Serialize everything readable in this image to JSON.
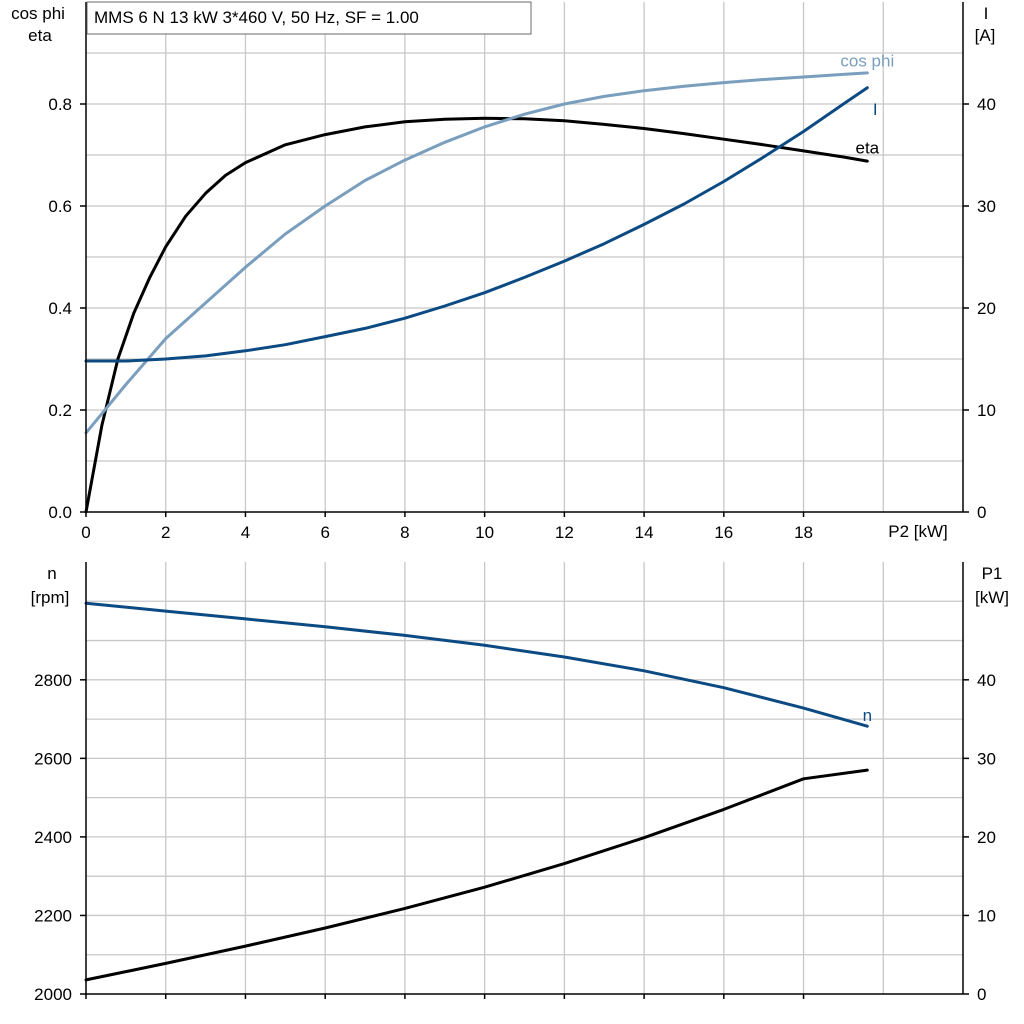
{
  "title": "MMS 6 N   13 kW   3*460 V, 50 Hz, SF = 1.00",
  "colors": {
    "eta": "#000000",
    "cosphi": "#7a9ebd",
    "I": "#0b4a82",
    "n": "#0b4a82",
    "P1": "#000000"
  },
  "chart_data": [
    {
      "type": "line",
      "title": "MMS 6 N   13 kW   3*460 V, 50 Hz, SF = 1.00",
      "x_tick_labels": [
        "0",
        "2",
        "4",
        "6",
        "8",
        "10",
        "12",
        "14",
        "16",
        "18"
      ],
      "x_ticks": [
        0,
        2,
        4,
        6,
        8,
        10,
        12,
        14,
        16,
        18
      ],
      "xlim": [
        0,
        22
      ],
      "xlabel": "P2 [kW]",
      "ylabel_left_line1": "cos phi",
      "ylabel_left_line2": "eta",
      "ylim_left": [
        0,
        1.0
      ],
      "y_left_ticks": [
        0.0,
        0.2,
        0.4,
        0.6,
        0.8
      ],
      "y_left_tick_labels": [
        "0.0",
        "0.2",
        "0.4",
        "0.6",
        "0.8"
      ],
      "ylabel_right_line1": "I",
      "ylabel_right_line2": "[A]",
      "ylim_right": [
        0,
        50
      ],
      "y_right_ticks": [
        0,
        10,
        20,
        30,
        40
      ],
      "y_right_tick_labels": [
        "0",
        "10",
        "20",
        "30",
        "40"
      ],
      "grid": true,
      "series": [
        {
          "name": "eta",
          "axis": "left",
          "label_at": [
            19.6,
            0.715
          ],
          "x": [
            0,
            0.4,
            0.8,
            1.2,
            1.6,
            2,
            2.5,
            3,
            3.5,
            4,
            5,
            6,
            7,
            8,
            9,
            10,
            11,
            12,
            13,
            14,
            15,
            16,
            17,
            18,
            19,
            19.6
          ],
          "y": [
            0,
            0.17,
            0.3,
            0.39,
            0.46,
            0.52,
            0.58,
            0.625,
            0.66,
            0.685,
            0.72,
            0.74,
            0.755,
            0.765,
            0.77,
            0.772,
            0.771,
            0.767,
            0.76,
            0.752,
            0.742,
            0.731,
            0.72,
            0.708,
            0.696,
            0.688
          ]
        },
        {
          "name": "cos phi",
          "axis": "left",
          "label_at": [
            19.6,
            0.885
          ],
          "x": [
            0,
            1,
            2,
            3,
            4,
            5,
            6,
            7,
            8,
            9,
            10,
            11,
            12,
            13,
            14,
            15,
            16,
            17,
            18,
            19,
            19.6
          ],
          "y": [
            0.155,
            0.25,
            0.34,
            0.41,
            0.48,
            0.545,
            0.6,
            0.65,
            0.69,
            0.725,
            0.755,
            0.78,
            0.8,
            0.815,
            0.826,
            0.835,
            0.842,
            0.848,
            0.853,
            0.858,
            0.861
          ]
        },
        {
          "name": "I",
          "axis": "right",
          "label_at": [
            19.8,
            39.5
          ],
          "x": [
            0,
            1,
            2,
            3,
            4,
            5,
            6,
            7,
            8,
            9,
            10,
            11,
            12,
            13,
            14,
            15,
            16,
            17,
            18,
            19,
            19.6
          ],
          "y": [
            14.8,
            14.8,
            15,
            15.3,
            15.8,
            16.4,
            17.2,
            18,
            19,
            20.2,
            21.5,
            23,
            24.6,
            26.3,
            28.2,
            30.2,
            32.4,
            34.8,
            37.3,
            40,
            41.6
          ]
        }
      ]
    },
    {
      "type": "line",
      "xlim": [
        0,
        22
      ],
      "x_ticks": [
        0,
        2,
        4,
        6,
        8,
        10,
        12,
        14,
        16,
        18
      ],
      "ylabel_left_line1": "n",
      "ylabel_left_line2": "[rpm]",
      "ylim_left": [
        2000,
        3100
      ],
      "y_left_ticks": [
        2000,
        2200,
        2400,
        2600,
        2800
      ],
      "y_left_tick_labels": [
        "2000",
        "2200",
        "2400",
        "2600",
        "2800"
      ],
      "ylabel_right_line1": "P1",
      "ylabel_right_line2": "[kW]",
      "ylim_right": [
        0,
        55
      ],
      "y_right_ticks": [
        0,
        10,
        20,
        30,
        40
      ],
      "y_right_tick_labels": [
        "0",
        "10",
        "20",
        "30",
        "40"
      ],
      "grid": true,
      "series": [
        {
          "name": "n",
          "axis": "left",
          "label_at": [
            19.6,
            2710
          ],
          "x": [
            0,
            2,
            4,
            6,
            8,
            10,
            12,
            14,
            16,
            18,
            19.6
          ],
          "y": [
            2995,
            2975,
            2955,
            2935,
            2913,
            2888,
            2858,
            2823,
            2780,
            2728,
            2682
          ]
        },
        {
          "name": "",
          "axis": "right",
          "x": [
            0,
            2,
            4,
            6,
            8,
            10,
            12,
            14,
            16,
            18,
            19.6
          ],
          "y": [
            1.8,
            3.9,
            6.1,
            8.4,
            10.9,
            13.6,
            16.6,
            19.9,
            23.5,
            27.4,
            28.5
          ]
        }
      ]
    }
  ]
}
